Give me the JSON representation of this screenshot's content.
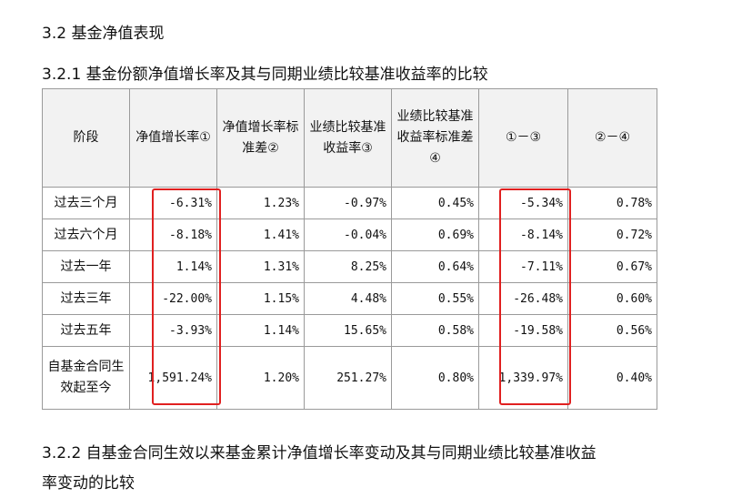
{
  "section_title": "3.2 基金净值表现",
  "subsection_title": "3.2.1 基金份额净值增长率及其与同期业绩比较基准收益率的比较",
  "table": {
    "headers": [
      "阶段",
      "净值增长率①",
      "净值增长率标准差②",
      "业绩比较基准收益率③",
      "业绩比较基准收益率标准差④",
      "①－③",
      "②－④"
    ],
    "rows": [
      {
        "period": "过去三个月",
        "v1": "-6.31%",
        "v2": "1.23%",
        "v3": "-0.97%",
        "v4": "0.45%",
        "v5": "-5.34%",
        "v6": "0.78%"
      },
      {
        "period": "过去六个月",
        "v1": "-8.18%",
        "v2": "1.41%",
        "v3": "-0.04%",
        "v4": "0.69%",
        "v5": "-8.14%",
        "v6": "0.72%"
      },
      {
        "period": "过去一年",
        "v1": "1.14%",
        "v2": "1.31%",
        "v3": "8.25%",
        "v4": "0.64%",
        "v5": "-7.11%",
        "v6": "0.67%"
      },
      {
        "period": "过去三年",
        "v1": "-22.00%",
        "v2": "1.15%",
        "v3": "4.48%",
        "v4": "0.55%",
        "v5": "-26.48%",
        "v6": "0.60%"
      },
      {
        "period": "过去五年",
        "v1": "-3.93%",
        "v2": "1.14%",
        "v3": "15.65%",
        "v4": "0.58%",
        "v5": "-19.58%",
        "v6": "0.56%"
      },
      {
        "period": "自基金合同生效起至今",
        "v1": "1,591.24%",
        "v2": "1.20%",
        "v3": "251.27%",
        "v4": "0.80%",
        "v5": "1,339.97%",
        "v6": "0.40%"
      }
    ]
  },
  "next_subsection_title_line1": "3.2.2 自基金合同生效以来基金累计净值增长率变动及其与同期业绩比较基准收益",
  "next_subsection_title_line2": "率变动的比较",
  "highlight_color": "#e02020"
}
